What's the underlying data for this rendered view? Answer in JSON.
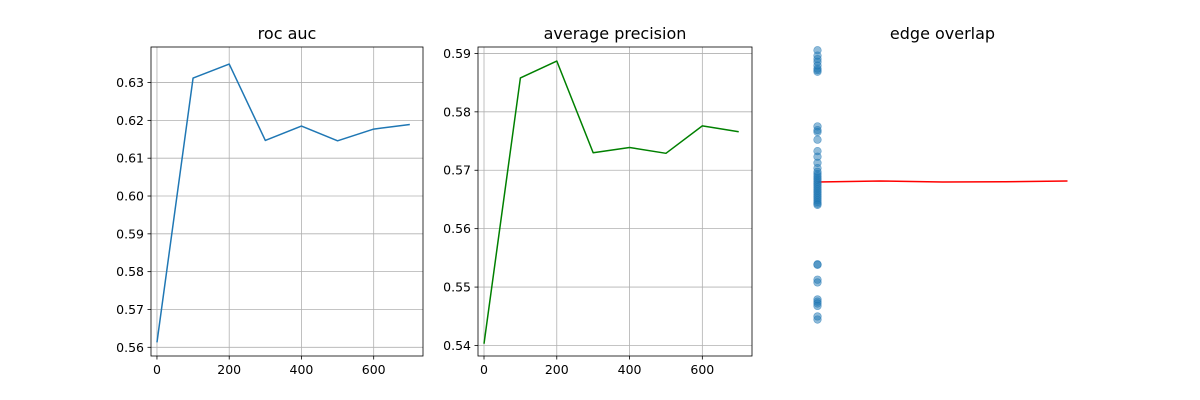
{
  "chart_data": [
    {
      "type": "line",
      "title": "roc auc",
      "xlabel": "",
      "ylabel": "",
      "x": [
        0,
        100,
        200,
        300,
        400,
        500,
        600,
        700
      ],
      "series": [
        {
          "values": [
            0.5613,
            0.6312,
            0.6349,
            0.6147,
            0.6185,
            0.6146,
            0.6177,
            0.6189
          ],
          "color": "#1f77b4"
        }
      ],
      "xlim": [
        -16.5,
        736.5
      ],
      "ylim": [
        0.5577,
        0.6394
      ],
      "xticks": [
        0,
        200,
        400,
        600
      ],
      "xtick_labels": [
        "0",
        "200",
        "400",
        "600"
      ],
      "yticks": [
        0.56,
        0.57,
        0.58,
        0.59,
        0.6,
        0.61,
        0.62,
        0.63
      ],
      "ytick_labels": [
        "0.56",
        "0.57",
        "0.58",
        "0.59",
        "0.60",
        "0.61",
        "0.62",
        "0.63"
      ],
      "grid": true
    },
    {
      "type": "line",
      "title": "average precision",
      "xlabel": "",
      "ylabel": "",
      "x": [
        0,
        100,
        200,
        300,
        400,
        500,
        600,
        700
      ],
      "series": [
        {
          "values": [
            0.5403,
            0.5858,
            0.5887,
            0.573,
            0.5739,
            0.5729,
            0.5776,
            0.5766
          ],
          "color": "#008000"
        }
      ],
      "xlim": [
        -16.5,
        736.5
      ],
      "ylim": [
        0.5382,
        0.5911
      ],
      "xticks": [
        0,
        200,
        400,
        600
      ],
      "xtick_labels": [
        "0",
        "200",
        "400",
        "600"
      ],
      "yticks": [
        0.54,
        0.55,
        0.56,
        0.57,
        0.58,
        0.59
      ],
      "ytick_labels": [
        "0.54",
        "0.55",
        "0.56",
        "0.57",
        "0.58",
        "0.59"
      ],
      "grid": true
    },
    {
      "type": "scatter",
      "title": "edge overlap",
      "xlabel": "",
      "ylabel": "",
      "axis_visible": false,
      "xlim": [
        -0.04,
        0.84
      ],
      "ylim": [
        0.0,
        1.0
      ],
      "scatter_color": "#1f77b4",
      "scatter_alpha": 0.5,
      "scatter_x": 0.0,
      "scatter_y": [
        0.9895,
        0.972,
        0.961,
        0.952,
        0.94,
        0.93,
        0.925,
        0.92,
        0.743,
        0.731,
        0.725,
        0.7,
        0.663,
        0.645,
        0.625,
        0.608,
        0.596,
        0.589,
        0.582,
        0.576,
        0.57,
        0.564,
        0.558,
        0.552,
        0.546,
        0.54,
        0.534,
        0.528,
        0.522,
        0.516,
        0.51,
        0.504,
        0.498,
        0.493,
        0.489,
        0.297,
        0.295,
        0.247,
        0.238,
        0.183,
        0.176,
        0.17,
        0.162,
        0.128,
        0.118
      ],
      "line_color": "#ff0000",
      "line_x": [
        0.0,
        0.2,
        0.4,
        0.6,
        0.8
      ],
      "line_y": [
        0.563,
        0.5664,
        0.563,
        0.564,
        0.5664
      ]
    }
  ]
}
